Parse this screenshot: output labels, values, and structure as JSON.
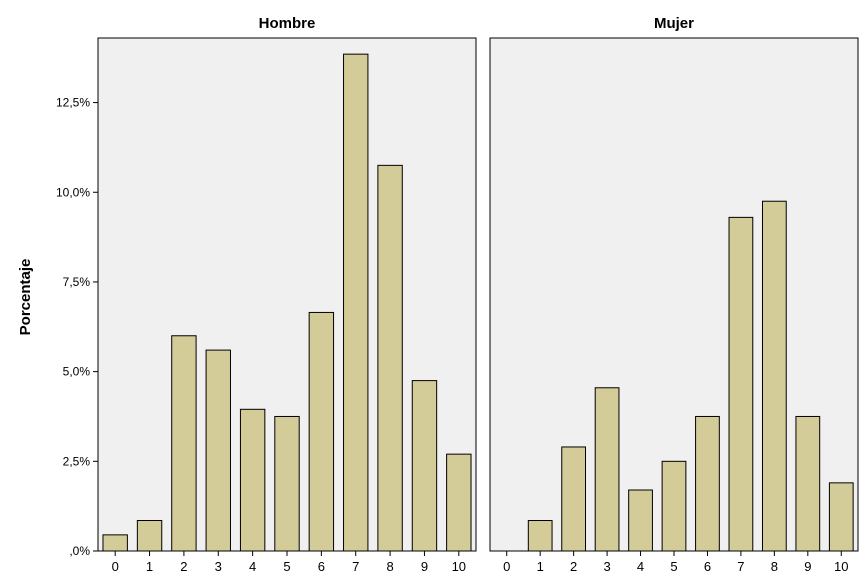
{
  "chart_data": {
    "type": "bar",
    "ylabel": "Porcentaje",
    "ylim": [
      0,
      14.3
    ],
    "yticks": [
      {
        "value": 0,
        "label": ",0%"
      },
      {
        "value": 2.5,
        "label": "2,5%"
      },
      {
        "value": 5.0,
        "label": "5,0%"
      },
      {
        "value": 7.5,
        "label": "7,5%"
      },
      {
        "value": 10.0,
        "label": "10,0%"
      },
      {
        "value": 12.5,
        "label": "12,5%"
      }
    ],
    "categories": [
      "0",
      "1",
      "2",
      "3",
      "4",
      "5",
      "6",
      "7",
      "8",
      "9",
      "10"
    ],
    "grid": false,
    "colors": {
      "bar_fill": "#d3cb98",
      "bar_stroke": "#000000",
      "plot_bg": "#f0f0f0",
      "panel_border": "#000000"
    },
    "panels": [
      {
        "title": "Hombre",
        "values": [
          0.45,
          0.85,
          6.0,
          5.6,
          3.95,
          3.75,
          6.65,
          13.85,
          10.75,
          4.75,
          2.7
        ]
      },
      {
        "title": "Mujer",
        "values": [
          0.0,
          0.85,
          2.9,
          4.55,
          1.7,
          2.5,
          3.75,
          9.3,
          9.75,
          3.75,
          1.9
        ]
      }
    ]
  }
}
